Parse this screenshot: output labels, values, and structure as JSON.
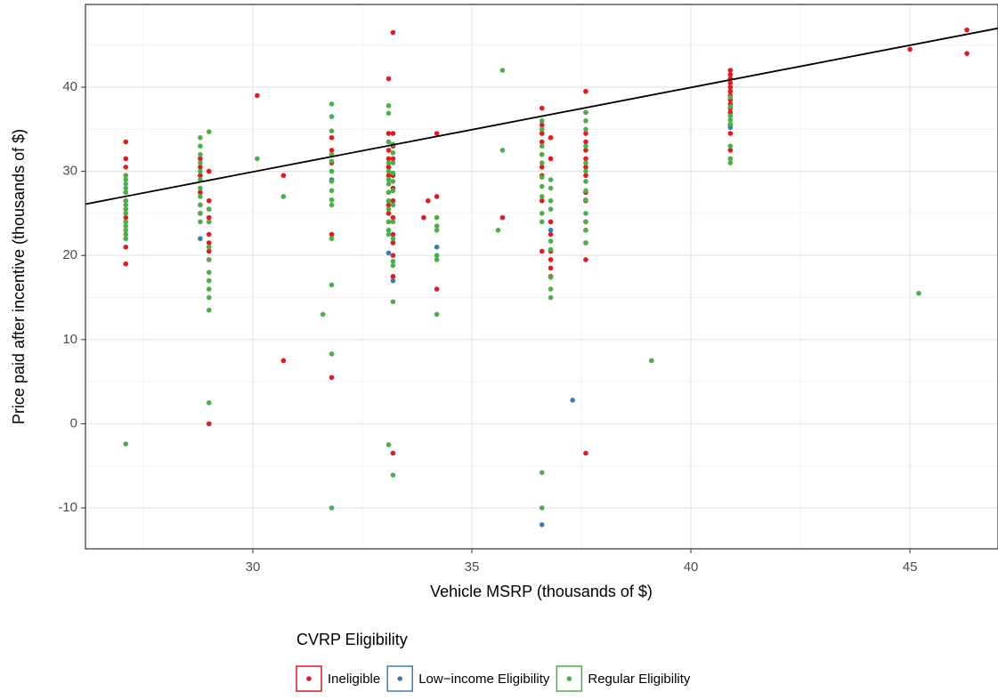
{
  "chart_data": {
    "type": "scatter",
    "xlabel": "Vehicle MSRP (thousands of $)",
    "ylabel": "Price paid after incentive (thousands of $)",
    "xlim": [
      26.18,
      47.01
    ],
    "ylim": [
      -14.86,
      49.83
    ],
    "xticks": [
      30,
      35,
      40,
      45
    ],
    "yticks": [
      -10,
      0,
      10,
      20,
      30,
      40
    ],
    "x_minor_grid": [
      27.5,
      32.5,
      37.5,
      42.5
    ],
    "y_minor_grid": [
      -5,
      5,
      15,
      25,
      35,
      45
    ],
    "grid": true,
    "legend_title": "CVRP Eligibility",
    "legend_position": "bottom",
    "trend_line": {
      "color": "#000000",
      "x": [
        26.18,
        47.01
      ],
      "y": [
        26.1,
        47.0
      ]
    },
    "series": [
      {
        "name": "Ineligible",
        "color": "#e41a1c",
        "x": [
          27.1,
          27.1,
          27.1,
          27.1,
          27.1,
          27.1,
          27.1,
          27.1,
          27.1,
          27.1,
          27.1,
          27.1,
          28.8,
          28.8,
          28.8,
          28.8,
          28.8,
          28.8,
          29.0,
          29.0,
          29.0,
          29.0,
          29.0,
          29.0,
          29.0,
          29.0,
          29.0,
          30.1,
          30.7,
          30.7,
          31.8,
          31.8,
          31.8,
          31.8,
          31.8,
          33.1,
          33.1,
          33.1,
          33.1,
          33.1,
          33.1,
          33.1,
          33.1,
          33.1,
          33.1,
          33.1,
          33.2,
          33.2,
          33.2,
          33.2,
          33.2,
          33.2,
          33.2,
          33.2,
          33.2,
          33.2,
          33.2,
          33.2,
          33.2,
          33.9,
          34.0,
          34.2,
          34.2,
          34.2,
          35.7,
          36.6,
          36.6,
          36.6,
          36.6,
          36.6,
          36.6,
          36.6,
          36.6,
          36.6,
          36.8,
          36.8,
          36.8,
          36.8,
          36.8,
          36.8,
          36.8,
          36.8,
          37.6,
          37.6,
          37.6,
          37.6,
          37.6,
          37.6,
          37.6,
          37.6,
          37.6,
          37.6,
          37.6,
          37.6,
          37.6,
          37.6,
          37.6,
          40.9,
          40.9,
          40.9,
          40.9,
          40.9,
          40.9,
          40.9,
          40.9,
          40.9,
          40.9,
          40.9,
          40.9,
          40.9,
          40.9,
          45.0,
          46.3,
          46.3
        ],
        "values": [
          33.5,
          31.5,
          30.5,
          29.5,
          27.5,
          26.5,
          25.5,
          24.5,
          24,
          22.5,
          21,
          19,
          31.5,
          30.5,
          29.5,
          27.5,
          26,
          25,
          30,
          26.5,
          25.5,
          24.5,
          22.5,
          21.5,
          20.5,
          19.5,
          0,
          39,
          29.5,
          7.5,
          34,
          32.5,
          31,
          22.5,
          5.5,
          41,
          34.5,
          33.5,
          32.5,
          31.5,
          30.5,
          29.5,
          27.5,
          26,
          25,
          24,
          46.5,
          34.5,
          33,
          31.5,
          29.5,
          28,
          26.5,
          24.5,
          22.5,
          21.5,
          20,
          17.5,
          -3.5,
          24.5,
          26.5,
          34.5,
          27,
          16,
          24.5,
          37.5,
          35.5,
          34.5,
          33.5,
          32,
          30.5,
          29.5,
          26.5,
          20.5,
          34,
          31.5,
          24,
          22.5,
          20.5,
          19.5,
          18.5,
          17.5,
          39.5,
          37,
          34.5,
          33.5,
          32.5,
          31.5,
          30.5,
          29.5,
          27.5,
          26.5,
          24,
          23,
          21.5,
          19.5,
          -3.5,
          42,
          41.5,
          41,
          40.5,
          40,
          39.5,
          39,
          38.5,
          38,
          37.5,
          37,
          35.5,
          34.5,
          32.5,
          44.5,
          46.8,
          44
        ]
      },
      {
        "name": "Low−income Eligibility",
        "color": "#377eb8",
        "x": [
          28.8,
          28.8,
          31.8,
          33.1,
          33.2,
          34.2,
          36.8,
          37.3,
          36.6,
          40.9
        ],
        "values": [
          25,
          22,
          29,
          20.3,
          17,
          21,
          23,
          2.8,
          -12,
          35.2
        ]
      },
      {
        "name": "Regular Eligibility",
        "color": "#4daf4a",
        "x": [
          27.1,
          27.1,
          27.1,
          27.1,
          27.1,
          27.1,
          27.1,
          27.1,
          27.1,
          27.1,
          27.1,
          27.1,
          27.1,
          27.1,
          27.1,
          28.8,
          28.8,
          28.8,
          28.8,
          28.8,
          28.8,
          28.8,
          28.8,
          28.8,
          28.8,
          28.8,
          29.0,
          29.0,
          29.0,
          29.0,
          29.0,
          29.0,
          29.0,
          29.0,
          29.0,
          29.0,
          29.0,
          30.1,
          30.7,
          31.8,
          31.8,
          31.8,
          31.8,
          31.8,
          31.8,
          31.8,
          31.8,
          31.8,
          31.8,
          31.8,
          31.8,
          31.8,
          31.8,
          31.6,
          33.1,
          33.1,
          33.1,
          33.1,
          33.1,
          33.1,
          33.1,
          33.1,
          33.1,
          33.1,
          33.1,
          33.1,
          33.1,
          33.1,
          33.2,
          33.2,
          33.2,
          33.2,
          33.2,
          33.2,
          33.2,
          33.2,
          33.2,
          33.2,
          33.2,
          33.2,
          33.2,
          34.2,
          34.2,
          34.2,
          34.2,
          34.2,
          34.2,
          35.6,
          35.7,
          35.7,
          36.6,
          36.6,
          36.6,
          36.6,
          36.6,
          36.6,
          36.6,
          36.6,
          36.6,
          36.6,
          36.6,
          36.6,
          36.8,
          36.8,
          36.8,
          36.8,
          36.8,
          36.8,
          36.8,
          36.8,
          36.8,
          37.6,
          37.6,
          37.6,
          37.6,
          37.6,
          37.6,
          37.6,
          37.6,
          37.6,
          37.6,
          37.6,
          37.6,
          37.6,
          39.1,
          40.9,
          40.9,
          40.9,
          40.9,
          40.9,
          40.9,
          40.9,
          40.9,
          45.2
        ],
        "values": [
          29.5,
          29,
          28.5,
          28,
          27.5,
          26.5,
          26,
          25.5,
          25,
          24,
          23.5,
          23,
          22.5,
          22,
          -2.4,
          34,
          33,
          32,
          31,
          30,
          29,
          28,
          27,
          26,
          25,
          24,
          34.7,
          25.5,
          24,
          21,
          19.5,
          18,
          17,
          16,
          15,
          13.5,
          2.5,
          31.5,
          27,
          38,
          36.5,
          34.8,
          32,
          31.2,
          30,
          28.8,
          27.7,
          26.6,
          26,
          22,
          16.5,
          8.3,
          -10,
          13,
          37.8,
          36.9,
          33.5,
          31,
          30,
          29,
          28.5,
          27.5,
          26.5,
          25.5,
          24,
          23,
          22.5,
          -2.5,
          33.2,
          32.2,
          31,
          29.8,
          28.8,
          27.7,
          26,
          24,
          22,
          19.3,
          18.8,
          14.5,
          -6.1,
          24.5,
          23.5,
          23,
          20,
          19.5,
          13,
          23,
          42,
          32.5,
          36,
          35,
          33,
          32,
          31,
          29.3,
          28.2,
          27,
          25,
          24,
          -5.8,
          -10,
          29,
          28,
          26.5,
          25.5,
          21.7,
          20.7,
          17.4,
          16,
          15,
          37,
          36,
          35,
          33,
          31,
          30,
          28.8,
          27.7,
          26.6,
          25,
          24,
          23,
          21.5,
          7.5,
          38.8,
          37.7,
          36.6,
          36.1,
          35.6,
          33,
          31.5,
          31,
          15.5
        ]
      }
    ]
  }
}
